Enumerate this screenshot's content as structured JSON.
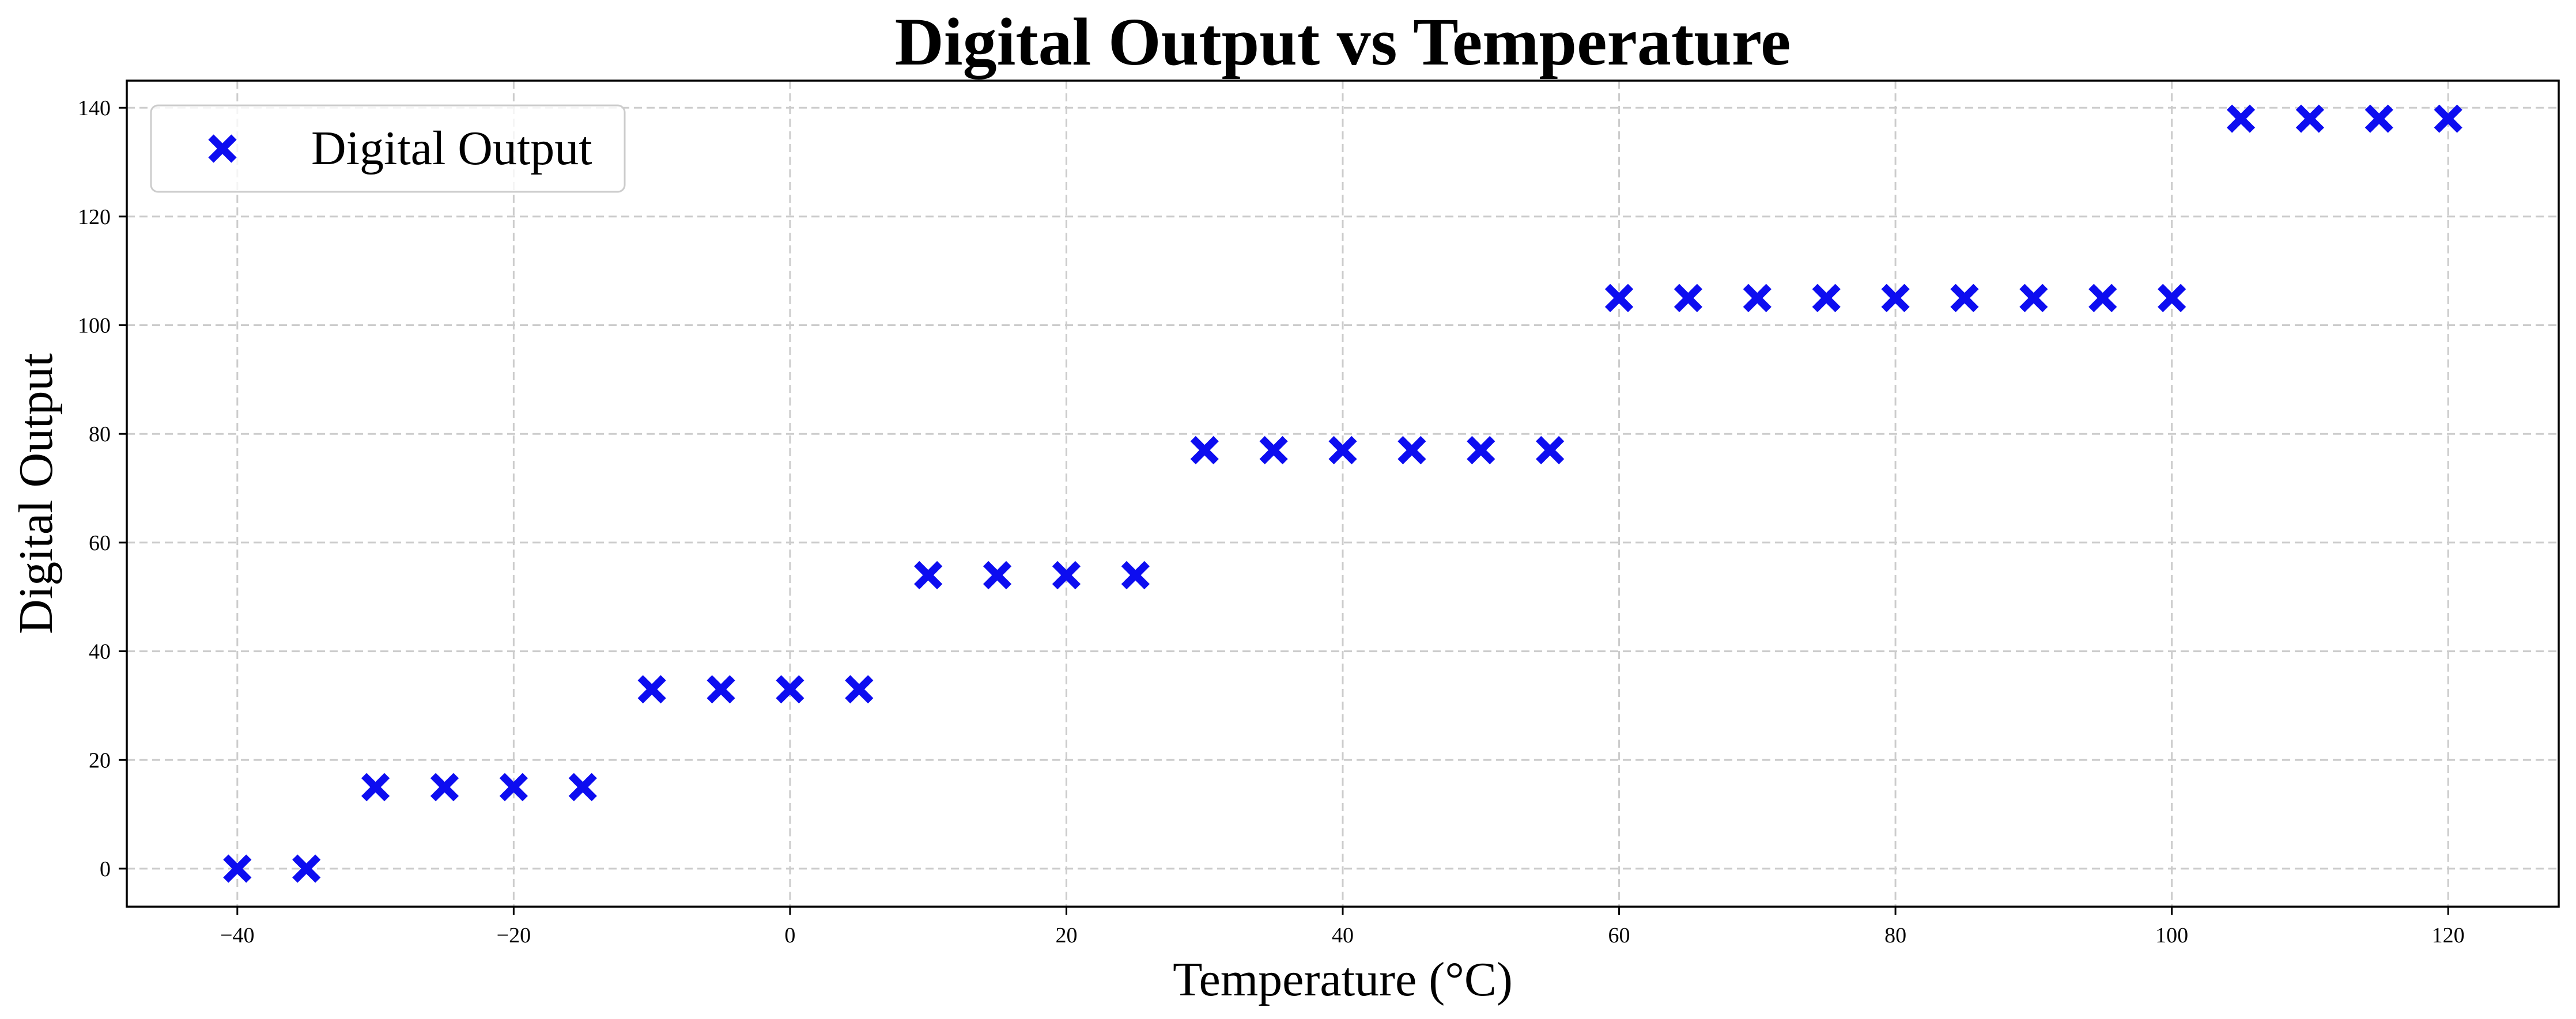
{
  "chart_data": {
    "type": "scatter",
    "title": "Digital Output vs Temperature",
    "xlabel": "Temperature (°C)",
    "ylabel": "Digital Output",
    "xlim": [
      -48,
      128
    ],
    "ylim": [
      -7,
      145
    ],
    "xticks": [
      -40,
      -20,
      0,
      20,
      40,
      60,
      80,
      100,
      120
    ],
    "yticks": [
      0,
      20,
      40,
      60,
      80,
      100,
      120,
      140
    ],
    "grid": true,
    "legend_position": "top-left",
    "series": [
      {
        "name": "Digital Output",
        "marker": "x",
        "color": "#0d0df0",
        "x": [
          -40,
          -35,
          -30,
          -25,
          -20,
          -15,
          -10,
          -5,
          0,
          5,
          10,
          15,
          20,
          25,
          30,
          35,
          40,
          45,
          50,
          55,
          60,
          65,
          70,
          75,
          80,
          85,
          90,
          95,
          100,
          105,
          110,
          115,
          120
        ],
        "y": [
          0,
          0,
          15,
          15,
          15,
          15,
          33,
          33,
          33,
          33,
          54,
          54,
          54,
          54,
          77,
          77,
          77,
          77,
          77,
          77,
          105,
          105,
          105,
          105,
          105,
          105,
          105,
          105,
          105,
          138,
          138,
          138,
          138
        ]
      }
    ]
  }
}
